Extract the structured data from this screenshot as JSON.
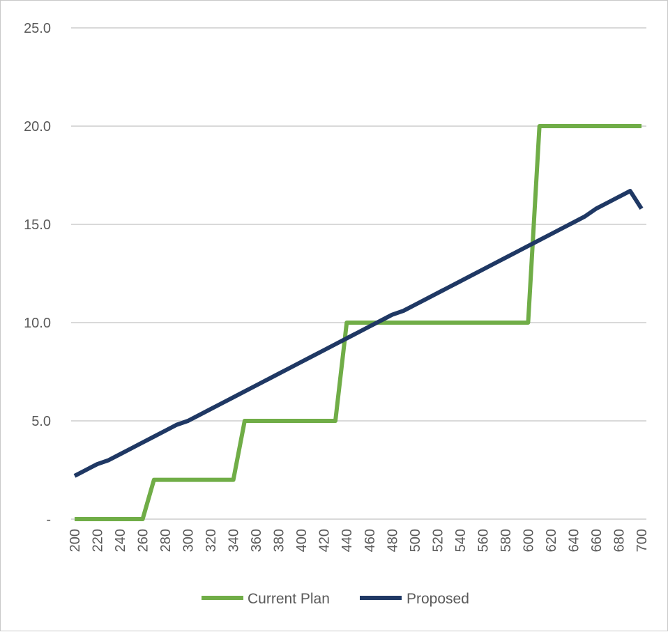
{
  "chart_data": {
    "type": "line",
    "title": "",
    "xlabel": "",
    "ylabel": "",
    "x": [
      200,
      210,
      220,
      230,
      240,
      250,
      260,
      270,
      280,
      290,
      300,
      310,
      320,
      330,
      340,
      350,
      360,
      370,
      380,
      390,
      400,
      410,
      420,
      430,
      440,
      450,
      460,
      470,
      480,
      490,
      500,
      510,
      520,
      530,
      540,
      550,
      560,
      570,
      580,
      590,
      600,
      610,
      620,
      630,
      640,
      650,
      660,
      670,
      680,
      690,
      700
    ],
    "x_tick_labels": [
      "200",
      "220",
      "240",
      "260",
      "280",
      "300",
      "320",
      "340",
      "360",
      "380",
      "400",
      "420",
      "440",
      "460",
      "480",
      "500",
      "520",
      "540",
      "560",
      "580",
      "600",
      "620",
      "640",
      "660",
      "680",
      "700"
    ],
    "xlim": [
      200,
      700
    ],
    "ylim": [
      0,
      25
    ],
    "y_ticks": [
      {
        "value": 0,
        "label": "-"
      },
      {
        "value": 5,
        "label": "5.0"
      },
      {
        "value": 10,
        "label": "10.0"
      },
      {
        "value": 15,
        "label": "15.0"
      },
      {
        "value": 20,
        "label": "20.0"
      },
      {
        "value": 25,
        "label": "25.0"
      }
    ],
    "grid": "horizontal",
    "legend_position": "bottom",
    "series": [
      {
        "name": "Current Plan",
        "color": "#70ad47",
        "values": [
          0,
          0,
          0,
          0,
          0,
          0,
          0,
          2,
          2,
          2,
          2,
          2,
          2,
          2,
          2,
          5,
          5,
          5,
          5,
          5,
          5,
          5,
          5,
          5,
          10,
          10,
          10,
          10,
          10,
          10,
          10,
          10,
          10,
          10,
          10,
          10,
          10,
          10,
          10,
          10,
          10,
          20,
          20,
          20,
          20,
          20,
          20,
          20,
          20,
          20,
          20
        ]
      },
      {
        "name": "Proposed",
        "color": "#1f3864",
        "values": [
          2.2,
          2.5,
          2.8,
          3.0,
          3.3,
          3.6,
          3.9,
          4.2,
          4.5,
          4.8,
          5.0,
          5.3,
          5.6,
          5.9,
          6.2,
          6.5,
          6.8,
          7.1,
          7.4,
          7.7,
          8.0,
          8.3,
          8.6,
          8.9,
          9.2,
          9.5,
          9.8,
          10.1,
          10.4,
          10.6,
          10.9,
          11.2,
          11.5,
          11.8,
          12.1,
          12.4,
          12.7,
          13.0,
          13.3,
          13.6,
          13.9,
          14.2,
          14.5,
          14.8,
          15.1,
          15.4,
          15.8,
          16.1,
          16.4,
          16.7,
          15.8
        ]
      }
    ]
  }
}
